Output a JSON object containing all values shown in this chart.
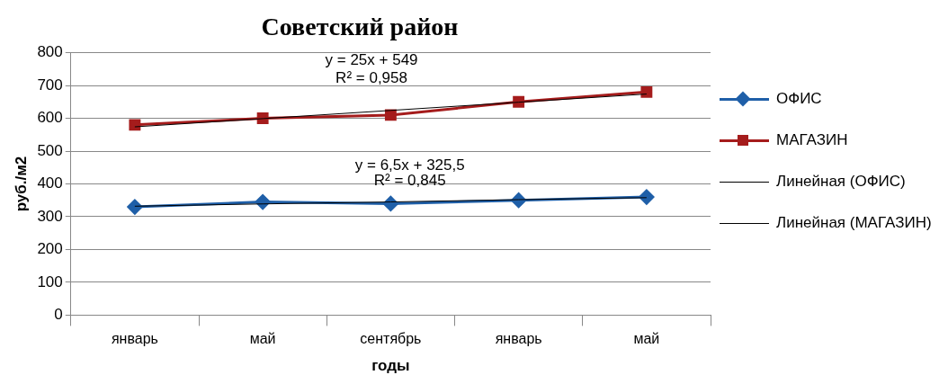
{
  "chart_data": {
    "type": "line",
    "title": "Советский район",
    "xlabel": "годы",
    "ylabel": "руб./м2",
    "categories": [
      "январь",
      "май",
      "сентябрь",
      "январь",
      "май"
    ],
    "series": [
      {
        "name": "ОФИС",
        "color": "#1f5fa8",
        "values": [
          330,
          345,
          340,
          350,
          360
        ],
        "marker": "diamond"
      },
      {
        "name": "МАГАЗИН",
        "color": "#a51c1c",
        "values": [
          580,
          600,
          610,
          650,
          680
        ],
        "marker": "square"
      },
      {
        "name": "Линейная (ОФИС)",
        "color": "#000000",
        "values": [
          332,
          339,
          345,
          352,
          358
        ],
        "marker": "none"
      },
      {
        "name": "Линейная (МАГАЗИН)",
        "color": "#000000",
        "values": [
          574,
          599,
          624,
          649,
          674
        ],
        "marker": "none"
      }
    ],
    "ylim": [
      0,
      800
    ],
    "yticks": [
      0,
      100,
      200,
      300,
      400,
      500,
      600,
      700,
      800
    ],
    "grid": "y",
    "legend": "right",
    "annotations": [
      "y = 25x + 549",
      "R² = 0,958",
      "y = 6,5x + 325,5",
      "R² = 0,845"
    ]
  }
}
